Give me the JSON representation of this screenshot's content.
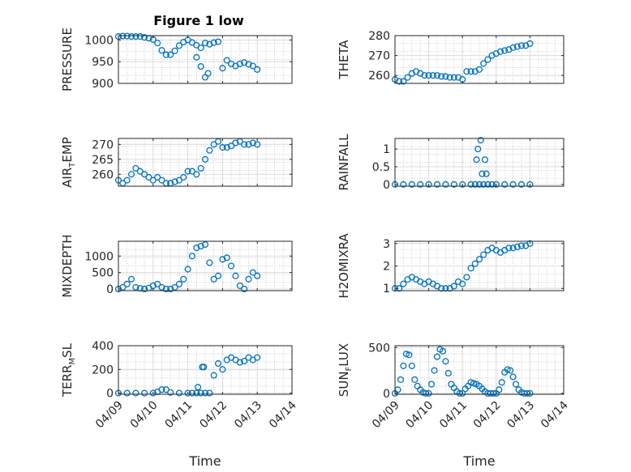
{
  "figure": {
    "title": "Figure 1 low"
  },
  "chart_data": [
    {
      "type": "scatter",
      "ylabel": "PRESSURE",
      "xlabel": "",
      "xlim": [
        "04/09",
        "04/14"
      ],
      "ylim": [
        900,
        1010
      ],
      "yticks": [
        "1000",
        "950",
        "900"
      ],
      "xticks": [
        "04/09",
        "04/10",
        "04/11",
        "04/12",
        "04/13",
        "04/14"
      ],
      "grid": true,
      "x": [
        "04/09 00:00",
        "04/09 03:00",
        "04/09 06:00",
        "04/09 09:00",
        "04/09 12:00",
        "04/09 15:00",
        "04/09 18:00",
        "04/09 21:00",
        "04/10 00:00",
        "04/10 03:00",
        "04/10 06:00",
        "04/10 09:00",
        "04/10 12:00",
        "04/10 15:00",
        "04/10 18:00",
        "04/10 21:00",
        "04/11 00:00",
        "04/11 03:00",
        "04/11 06:00",
        "04/11 09:00",
        "04/11 12:00",
        "04/11 15:00",
        "04/11 18:00",
        "04/11 21:00",
        "04/12 00:00",
        "04/12 03:00",
        "04/12 06:00",
        "04/12 09:00",
        "04/12 12:00",
        "04/12 15:00",
        "04/12 18:00",
        "04/12 21:00",
        "04/13 00:00",
        "04/11 06:00",
        "04/11 09:00",
        "04/11 12:00",
        "04/11 14:00"
      ],
      "y": [
        1008,
        1009,
        1009,
        1008,
        1008,
        1008,
        1006,
        1004,
        1001,
        993,
        976,
        966,
        966,
        975,
        987,
        995,
        1000,
        994,
        988,
        982,
        993,
        990,
        994,
        996,
        935,
        953,
        945,
        940,
        945,
        948,
        944,
        940,
        932,
        960,
        939,
        914,
        923
      ]
    },
    {
      "type": "scatter",
      "ylabel": "THETA",
      "xlabel": "",
      "xlim": [
        "04/09",
        "04/14"
      ],
      "ylim": [
        256,
        280
      ],
      "yticks": [
        "280",
        "270",
        "260"
      ],
      "xticks": [
        "04/09",
        "04/10",
        "04/11",
        "04/12",
        "04/13",
        "04/14"
      ],
      "grid": true,
      "x": [
        "04/09 00:00",
        "04/09 03:00",
        "04/09 06:00",
        "04/09 09:00",
        "04/09 12:00",
        "04/09 15:00",
        "04/09 18:00",
        "04/09 21:00",
        "04/10 00:00",
        "04/10 03:00",
        "04/10 06:00",
        "04/10 09:00",
        "04/10 12:00",
        "04/10 15:00",
        "04/10 18:00",
        "04/10 21:00",
        "04/11 00:00",
        "04/11 03:00",
        "04/11 06:00",
        "04/11 09:00",
        "04/11 12:00",
        "04/11 15:00",
        "04/11 18:00",
        "04/11 21:00",
        "04/12 00:00",
        "04/12 03:00",
        "04/12 06:00",
        "04/12 09:00",
        "04/12 12:00",
        "04/12 15:00",
        "04/12 18:00",
        "04/12 21:00",
        "04/13 00:00"
      ],
      "y": [
        258,
        257,
        257,
        259,
        261,
        262,
        261,
        260,
        260,
        260,
        260,
        259.5,
        259.5,
        259,
        259,
        259,
        258,
        262,
        262,
        262,
        263,
        266,
        268,
        270,
        271,
        272,
        272.5,
        273,
        274,
        274.5,
        275,
        275,
        276
      ]
    },
    {
      "type": "scatter",
      "ylabel": "AIR_TEMP",
      "xlabel": "",
      "xlim": [
        "04/09",
        "04/14"
      ],
      "ylim": [
        256,
        272
      ],
      "yticks": [
        "270",
        "265",
        "260"
      ],
      "xticks": [
        "04/09",
        "04/10",
        "04/11",
        "04/12",
        "04/13",
        "04/14"
      ],
      "grid": true,
      "x": [
        "04/09 00:00",
        "04/09 03:00",
        "04/09 06:00",
        "04/09 09:00",
        "04/09 12:00",
        "04/09 15:00",
        "04/09 18:00",
        "04/09 21:00",
        "04/10 00:00",
        "04/10 03:00",
        "04/10 06:00",
        "04/10 09:00",
        "04/10 12:00",
        "04/10 15:00",
        "04/10 18:00",
        "04/10 21:00",
        "04/11 00:00",
        "04/11 03:00",
        "04/11 06:00",
        "04/11 09:00",
        "04/11 12:00",
        "04/11 15:00",
        "04/11 18:00",
        "04/11 21:00",
        "04/12 00:00",
        "04/12 03:00",
        "04/12 06:00",
        "04/12 09:00",
        "04/12 12:00",
        "04/12 15:00",
        "04/12 18:00",
        "04/12 21:00",
        "04/13 00:00"
      ],
      "y": [
        258,
        257,
        258,
        260,
        262,
        261,
        260,
        259,
        258,
        259,
        258,
        257,
        257,
        257.5,
        258,
        259,
        261,
        261,
        260,
        262,
        265,
        268,
        270,
        271,
        269,
        269,
        269.5,
        270.5,
        271,
        270,
        270,
        270.5,
        270
      ]
    },
    {
      "type": "scatter",
      "ylabel": "RAINFALL",
      "xlabel": "",
      "xlim": [
        "04/09",
        "04/14"
      ],
      "ylim": [
        -0.05,
        1.3
      ],
      "yticks": [
        "1",
        "0.5",
        "0"
      ],
      "xticks": [
        "04/09",
        "04/10",
        "04/11",
        "04/12",
        "04/13",
        "04/14"
      ],
      "grid": true,
      "x": [
        "04/09 00:00",
        "04/09 06:00",
        "04/09 12:00",
        "04/09 18:00",
        "04/10 00:00",
        "04/10 06:00",
        "04/10 12:00",
        "04/10 18:00",
        "04/11 00:00",
        "04/11 06:00",
        "04/11 09:00",
        "04/11 12:00",
        "04/11 15:00",
        "04/11 18:00",
        "04/11 21:00",
        "04/12 00:00",
        "04/12 06:00",
        "04/12 12:00",
        "04/12 18:00",
        "04/13 00:00",
        "04/11 10:00",
        "04/11 11:00",
        "04/11 13:00",
        "04/11 14:00",
        "04/11 16:00",
        "04/11 17:00"
      ],
      "y": [
        0,
        0,
        0,
        0,
        0,
        0,
        0,
        0,
        0,
        0,
        0,
        0,
        0,
        0,
        0,
        0,
        0,
        0,
        0,
        0,
        0.7,
        1.0,
        1.25,
        0.3,
        0.7,
        0.3
      ]
    },
    {
      "type": "scatter",
      "ylabel": "MIXDEPTH",
      "xlabel": "",
      "xlim": [
        "04/09",
        "04/14"
      ],
      "ylim": [
        -50,
        1450
      ],
      "yticks": [
        "1000",
        "500",
        "0"
      ],
      "xticks": [
        "04/09",
        "04/10",
        "04/11",
        "04/12",
        "04/13",
        "04/14"
      ],
      "grid": true,
      "x": [
        "04/09 00:00",
        "04/09 03:00",
        "04/09 06:00",
        "04/09 09:00",
        "04/09 12:00",
        "04/09 15:00",
        "04/09 18:00",
        "04/09 21:00",
        "04/10 00:00",
        "04/10 03:00",
        "04/10 06:00",
        "04/10 09:00",
        "04/10 12:00",
        "04/10 15:00",
        "04/10 18:00",
        "04/10 21:00",
        "04/11 00:00",
        "04/11 03:00",
        "04/11 06:00",
        "04/11 09:00",
        "04/11 12:00",
        "04/11 15:00",
        "04/11 18:00",
        "04/11 21:00",
        "04/12 00:00",
        "04/12 03:00",
        "04/12 06:00",
        "04/12 09:00",
        "04/12 12:00",
        "04/12 15:00",
        "04/12 18:00",
        "04/12 21:00",
        "04/13 00:00"
      ],
      "y": [
        0,
        50,
        150,
        300,
        50,
        20,
        0,
        30,
        100,
        150,
        50,
        0,
        0,
        50,
        150,
        300,
        600,
        1000,
        1250,
        1300,
        1350,
        800,
        300,
        400,
        900,
        950,
        700,
        400,
        100,
        0,
        300,
        500,
        400
      ]
    },
    {
      "type": "scatter",
      "ylabel": "H2OMIXRA",
      "xlabel": "",
      "xlim": [
        "04/09",
        "04/14"
      ],
      "ylim": [
        0.9,
        3.1
      ],
      "yticks": [
        "3",
        "2",
        "1"
      ],
      "xticks": [
        "04/09",
        "04/10",
        "04/11",
        "04/12",
        "04/13",
        "04/14"
      ],
      "grid": true,
      "x": [
        "04/09 00:00",
        "04/09 03:00",
        "04/09 06:00",
        "04/09 09:00",
        "04/09 12:00",
        "04/09 15:00",
        "04/09 18:00",
        "04/09 21:00",
        "04/10 00:00",
        "04/10 03:00",
        "04/10 06:00",
        "04/10 09:00",
        "04/10 12:00",
        "04/10 15:00",
        "04/10 18:00",
        "04/10 21:00",
        "04/11 00:00",
        "04/11 03:00",
        "04/11 06:00",
        "04/11 09:00",
        "04/11 12:00",
        "04/11 15:00",
        "04/11 18:00",
        "04/11 21:00",
        "04/12 00:00",
        "04/12 03:00",
        "04/12 06:00",
        "04/12 09:00",
        "04/12 12:00",
        "04/12 15:00",
        "04/12 18:00",
        "04/12 21:00",
        "04/13 00:00"
      ],
      "y": [
        1,
        1,
        1.2,
        1.4,
        1.5,
        1.4,
        1.3,
        1.2,
        1.3,
        1.2,
        1.1,
        1.0,
        1.0,
        1.0,
        1.1,
        1.3,
        1.2,
        1.5,
        1.9,
        2.1,
        2.3,
        2.5,
        2.7,
        2.8,
        2.7,
        2.6,
        2.7,
        2.8,
        2.8,
        2.85,
        2.9,
        2.9,
        3.0
      ]
    },
    {
      "type": "scatter",
      "ylabel": "TERR_MSL",
      "xlabel": "Time",
      "xlim": [
        "04/09",
        "04/14"
      ],
      "ylim": [
        -10,
        400
      ],
      "yticks": [
        "400",
        "200",
        "0"
      ],
      "xticks": [
        "04/09",
        "04/10",
        "04/11",
        "04/12",
        "04/13",
        "04/14"
      ],
      "grid": true,
      "x": [
        "04/09 00:00",
        "04/09 06:00",
        "04/09 12:00",
        "04/09 18:00",
        "04/10 00:00",
        "04/10 03:00",
        "04/10 06:00",
        "04/10 09:00",
        "04/10 12:00",
        "04/10 18:00",
        "04/11 00:00",
        "04/11 03:00",
        "04/11 06:00",
        "04/11 09:00",
        "04/11 12:00",
        "04/11 15:00",
        "04/11 18:00",
        "04/11 21:00",
        "04/12 00:00",
        "04/12 03:00",
        "04/12 06:00",
        "04/12 09:00",
        "04/12 12:00",
        "04/12 15:00",
        "04/12 18:00",
        "04/12 21:00",
        "04/13 00:00",
        "04/11 10:00",
        "04/11 11:00",
        "04/11 07:00"
      ],
      "y": [
        0,
        0,
        0,
        0,
        0,
        10,
        30,
        30,
        5,
        0,
        0,
        0,
        0,
        0,
        0,
        0,
        150,
        250,
        200,
        280,
        300,
        280,
        260,
        270,
        300,
        280,
        300,
        220,
        220,
        50
      ]
    },
    {
      "type": "scatter",
      "ylabel": "SUN_FLUX",
      "xlabel": "Time",
      "xlim": [
        "04/09",
        "04/14"
      ],
      "ylim": [
        -10,
        520
      ],
      "yticks": [
        "500",
        "0"
      ],
      "xticks": [
        "04/09",
        "04/10",
        "04/11",
        "04/12",
        "04/13",
        "04/14"
      ],
      "grid": true,
      "x": [
        "04/09 00:00",
        "04/09 02:00",
        "04/09 04:00",
        "04/09 06:00",
        "04/09 08:00",
        "04/09 10:00",
        "04/09 12:00",
        "04/09 14:00",
        "04/09 16:00",
        "04/09 18:00",
        "04/09 20:00",
        "04/09 22:00",
        "04/10 00:00",
        "04/10 02:00",
        "04/10 04:00",
        "04/10 06:00",
        "04/10 08:00",
        "04/10 10:00",
        "04/10 12:00",
        "04/10 14:00",
        "04/10 16:00",
        "04/10 18:00",
        "04/10 20:00",
        "04/10 22:00",
        "04/11 00:00",
        "04/11 02:00",
        "04/11 04:00",
        "04/11 06:00",
        "04/11 08:00",
        "04/11 10:00",
        "04/11 12:00",
        "04/11 14:00",
        "04/11 16:00",
        "04/11 18:00",
        "04/11 20:00",
        "04/11 22:00",
        "04/12 00:00",
        "04/12 02:00",
        "04/12 04:00",
        "04/12 06:00",
        "04/12 08:00",
        "04/12 10:00",
        "04/12 12:00",
        "04/12 14:00",
        "04/12 16:00",
        "04/12 18:00",
        "04/12 20:00",
        "04/12 22:00",
        "04/13 00:00"
      ],
      "y": [
        0,
        40,
        150,
        300,
        430,
        420,
        300,
        150,
        80,
        40,
        10,
        0,
        0,
        100,
        250,
        400,
        480,
        460,
        350,
        220,
        100,
        60,
        20,
        0,
        0,
        50,
        80,
        120,
        110,
        100,
        80,
        50,
        20,
        0,
        0,
        0,
        0,
        40,
        120,
        230,
        260,
        250,
        180,
        100,
        40,
        10,
        0,
        0,
        0
      ]
    }
  ]
}
